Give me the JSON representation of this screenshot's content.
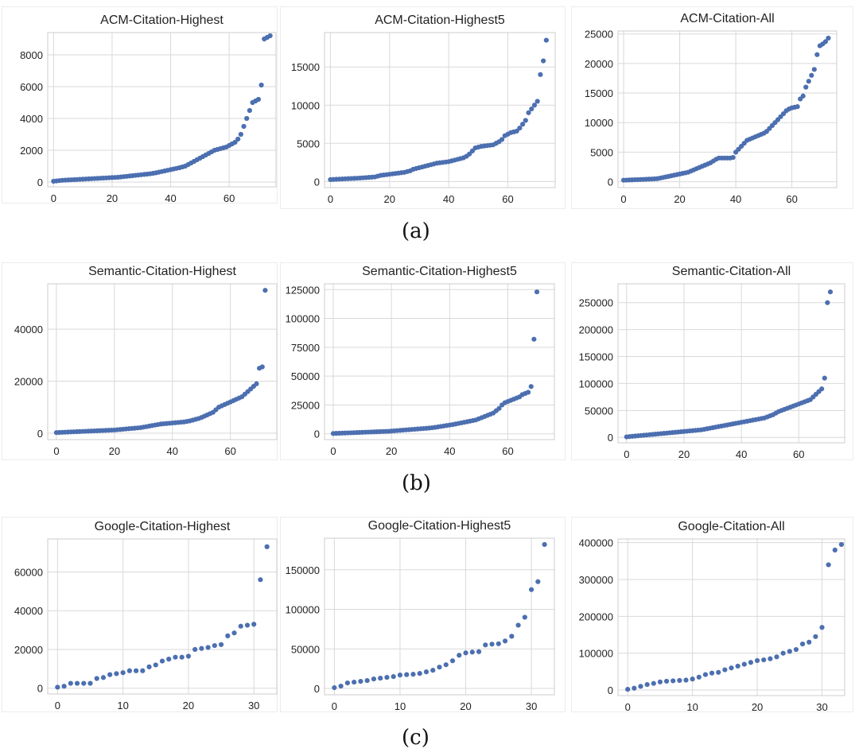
{
  "captions": [
    "(a)",
    "(b)",
    "(c)"
  ],
  "colors": {
    "point": "#4c6fb0",
    "grid": "#d9d9d9",
    "frame": "#cccccc",
    "text": "#222222"
  },
  "chart_data": [
    {
      "type": "scatter",
      "title": "ACM-Citation-Highest",
      "xlabel": "",
      "ylabel": "",
      "xlim": [
        -2,
        76
      ],
      "ylim": [
        -300,
        9400
      ],
      "xticks": [
        0,
        20,
        40,
        60
      ],
      "yticks": [
        0,
        2000,
        4000,
        6000,
        8000
      ],
      "y": [
        50,
        70,
        90,
        110,
        120,
        130,
        140,
        150,
        160,
        170,
        180,
        190,
        200,
        210,
        220,
        230,
        240,
        250,
        260,
        270,
        280,
        290,
        300,
        320,
        340,
        360,
        380,
        400,
        420,
        440,
        460,
        480,
        500,
        520,
        550,
        580,
        620,
        660,
        700,
        740,
        780,
        820,
        860,
        900,
        950,
        1000,
        1100,
        1200,
        1300,
        1400,
        1500,
        1600,
        1700,
        1800,
        1900,
        2000,
        2050,
        2100,
        2150,
        2200,
        2300,
        2400,
        2500,
        2700,
        3000,
        3500,
        4000,
        4500,
        5000,
        5100,
        5200,
        6100,
        9000,
        9100,
        9200
      ]
    },
    {
      "type": "scatter",
      "title": "ACM-Citation-Highest5",
      "xlabel": "",
      "ylabel": "",
      "xlim": [
        -2,
        76
      ],
      "ylim": [
        -800,
        19500
      ],
      "xticks": [
        0,
        20,
        40,
        60
      ],
      "yticks": [
        0,
        5000,
        10000,
        15000
      ],
      "y": [
        250,
        270,
        290,
        310,
        330,
        350,
        370,
        390,
        410,
        430,
        450,
        480,
        510,
        540,
        570,
        600,
        700,
        800,
        850,
        900,
        950,
        1000,
        1050,
        1100,
        1150,
        1200,
        1300,
        1400,
        1600,
        1700,
        1800,
        1900,
        2000,
        2100,
        2200,
        2300,
        2400,
        2450,
        2500,
        2550,
        2600,
        2700,
        2800,
        2900,
        3000,
        3100,
        3300,
        3600,
        4000,
        4400,
        4500,
        4600,
        4650,
        4700,
        4750,
        4800,
        5000,
        5200,
        5500,
        6000,
        6200,
        6400,
        6500,
        6600,
        7000,
        7500,
        8000,
        9000,
        9500,
        10000,
        10500,
        14000,
        15800,
        18500
      ]
    },
    {
      "type": "scatter",
      "title": "ACM-Citation-All",
      "xlabel": "",
      "ylabel": "",
      "xlim": [
        -2,
        76
      ],
      "ylim": [
        -1000,
        25500
      ],
      "xticks": [
        0,
        20,
        40,
        60
      ],
      "yticks": [
        0,
        5000,
        10000,
        15000,
        20000,
        25000
      ],
      "y": [
        250,
        270,
        290,
        310,
        330,
        350,
        370,
        390,
        410,
        430,
        450,
        480,
        510,
        600,
        700,
        800,
        900,
        1000,
        1100,
        1200,
        1300,
        1400,
        1500,
        1600,
        1800,
        2000,
        2200,
        2400,
        2600,
        2800,
        3000,
        3200,
        3500,
        3800,
        4000,
        4000,
        4000,
        4000,
        4000,
        4100,
        5000,
        5500,
        6000,
        6500,
        7000,
        7200,
        7400,
        7600,
        7800,
        8000,
        8200,
        8500,
        9000,
        9500,
        10000,
        10500,
        11000,
        11500,
        12000,
        12300,
        12500,
        12600,
        12700,
        14000,
        14500,
        16000,
        17000,
        18000,
        19000,
        21500,
        23000,
        23300,
        23700,
        24300
      ]
    },
    {
      "type": "scatter",
      "title": "Semantic-Citation-Highest",
      "xlabel": "",
      "ylabel": "",
      "xlim": [
        -3,
        76
      ],
      "ylim": [
        -2500,
        57500
      ],
      "xticks": [
        0,
        20,
        40,
        60
      ],
      "yticks": [
        0,
        20000,
        40000
      ],
      "y": [
        200,
        250,
        300,
        350,
        400,
        450,
        500,
        550,
        600,
        650,
        700,
        750,
        800,
        850,
        900,
        950,
        1000,
        1050,
        1100,
        1150,
        1200,
        1300,
        1400,
        1500,
        1600,
        1700,
        1800,
        1900,
        2000,
        2100,
        2300,
        2500,
        2700,
        2900,
        3100,
        3300,
        3500,
        3600,
        3700,
        3800,
        3900,
        4000,
        4100,
        4200,
        4300,
        4500,
        4700,
        5000,
        5300,
        5600,
        6000,
        6500,
        7000,
        7500,
        8000,
        9000,
        10000,
        10500,
        11000,
        11500,
        12000,
        12500,
        13000,
        13500,
        14000,
        15000,
        16000,
        17000,
        18000,
        19000,
        25000,
        25500,
        55000
      ]
    },
    {
      "type": "scatter",
      "title": "Semantic-Citation-Highest5",
      "xlabel": "",
      "ylabel": "",
      "xlim": [
        -3,
        76
      ],
      "ylim": [
        -5000,
        130000
      ],
      "xticks": [
        0,
        20,
        40,
        60
      ],
      "yticks": [
        0,
        25000,
        50000,
        75000,
        100000,
        125000
      ],
      "y": [
        300,
        400,
        500,
        600,
        700,
        800,
        900,
        1000,
        1100,
        1200,
        1300,
        1400,
        1500,
        1600,
        1700,
        1800,
        1900,
        2000,
        2100,
        2200,
        2400,
        2600,
        2800,
        3000,
        3200,
        3400,
        3600,
        3800,
        4000,
        4200,
        4400,
        4600,
        4800,
        5000,
        5300,
        5600,
        6000,
        6400,
        6800,
        7200,
        7600,
        8000,
        8500,
        9000,
        9500,
        10000,
        10500,
        11000,
        11500,
        12000,
        13000,
        14000,
        15000,
        16000,
        17000,
        18000,
        20000,
        22000,
        25000,
        27000,
        28000,
        29000,
        30000,
        31000,
        32000,
        34000,
        35000,
        36000,
        41000,
        82000,
        123000
      ]
    },
    {
      "type": "scatter",
      "title": "Semantic-Citation-All",
      "xlabel": "",
      "ylabel": "",
      "xlim": [
        -3,
        76
      ],
      "ylim": [
        -10000,
        285000
      ],
      "xticks": [
        0,
        20,
        40,
        60
      ],
      "yticks": [
        0,
        50000,
        100000,
        150000,
        200000,
        250000
      ],
      "y": [
        1000,
        1500,
        2000,
        2500,
        3000,
        3500,
        4000,
        4500,
        5000,
        5500,
        6000,
        6500,
        7000,
        7500,
        8000,
        8500,
        9000,
        9500,
        10000,
        10500,
        11000,
        11500,
        12000,
        12500,
        13000,
        13500,
        14000,
        15000,
        16000,
        17000,
        18000,
        19000,
        20000,
        21000,
        22000,
        23000,
        24000,
        25000,
        26000,
        27000,
        28000,
        29000,
        30000,
        31000,
        32000,
        33000,
        34000,
        35000,
        36000,
        38000,
        40000,
        42000,
        45000,
        48000,
        50000,
        52000,
        54000,
        56000,
        58000,
        60000,
        62000,
        64000,
        66000,
        68000,
        70000,
        75000,
        80000,
        85000,
        90000,
        110000,
        250000,
        270000
      ]
    },
    {
      "type": "scatter",
      "title": "Google-Citation-Highest",
      "xlabel": "",
      "ylabel": "",
      "xlim": [
        -1.5,
        33.5
      ],
      "ylim": [
        -3000,
        77000
      ],
      "xticks": [
        0,
        10,
        20,
        30
      ],
      "yticks": [
        0,
        20000,
        40000,
        60000
      ],
      "y": [
        500,
        1000,
        2500,
        2500,
        2500,
        2500,
        5000,
        5500,
        7000,
        7500,
        8000,
        9000,
        9000,
        9000,
        11000,
        12000,
        14000,
        15000,
        16000,
        16000,
        16500,
        20000,
        20500,
        21000,
        22000,
        22500,
        27000,
        28500,
        32000,
        32500,
        33000,
        56000,
        73000
      ]
    },
    {
      "type": "scatter",
      "title": "Google-Citation-Highest5",
      "xlabel": "",
      "ylabel": "",
      "xlim": [
        -1.5,
        33.5
      ],
      "ylim": [
        -8000,
        190000
      ],
      "xticks": [
        0,
        10,
        20,
        30
      ],
      "yticks": [
        0,
        50000,
        100000,
        150000
      ],
      "y": [
        1000,
        3000,
        7000,
        8000,
        9000,
        10000,
        12000,
        13000,
        14000,
        15000,
        17000,
        17500,
        18000,
        19000,
        21000,
        23000,
        27000,
        30000,
        35000,
        42000,
        45000,
        46000,
        46500,
        55000,
        56000,
        56500,
        60000,
        66000,
        80000,
        90000,
        125000,
        135000,
        182000
      ]
    },
    {
      "type": "scatter",
      "title": "Google-Citation-All",
      "xlabel": "",
      "ylabel": "",
      "xlim": [
        -1.5,
        33.5
      ],
      "ylim": [
        -15000,
        410000
      ],
      "xticks": [
        0,
        10,
        20,
        30
      ],
      "yticks": [
        0,
        100000,
        200000,
        300000,
        400000
      ],
      "y": [
        2000,
        5000,
        10000,
        15000,
        18000,
        22000,
        24000,
        25000,
        26000,
        27000,
        30000,
        35000,
        42000,
        46000,
        48000,
        55000,
        60000,
        65000,
        70000,
        75000,
        80000,
        82000,
        85000,
        90000,
        100000,
        105000,
        110000,
        125000,
        130000,
        145000,
        170000,
        340000,
        380000,
        395000
      ]
    }
  ]
}
